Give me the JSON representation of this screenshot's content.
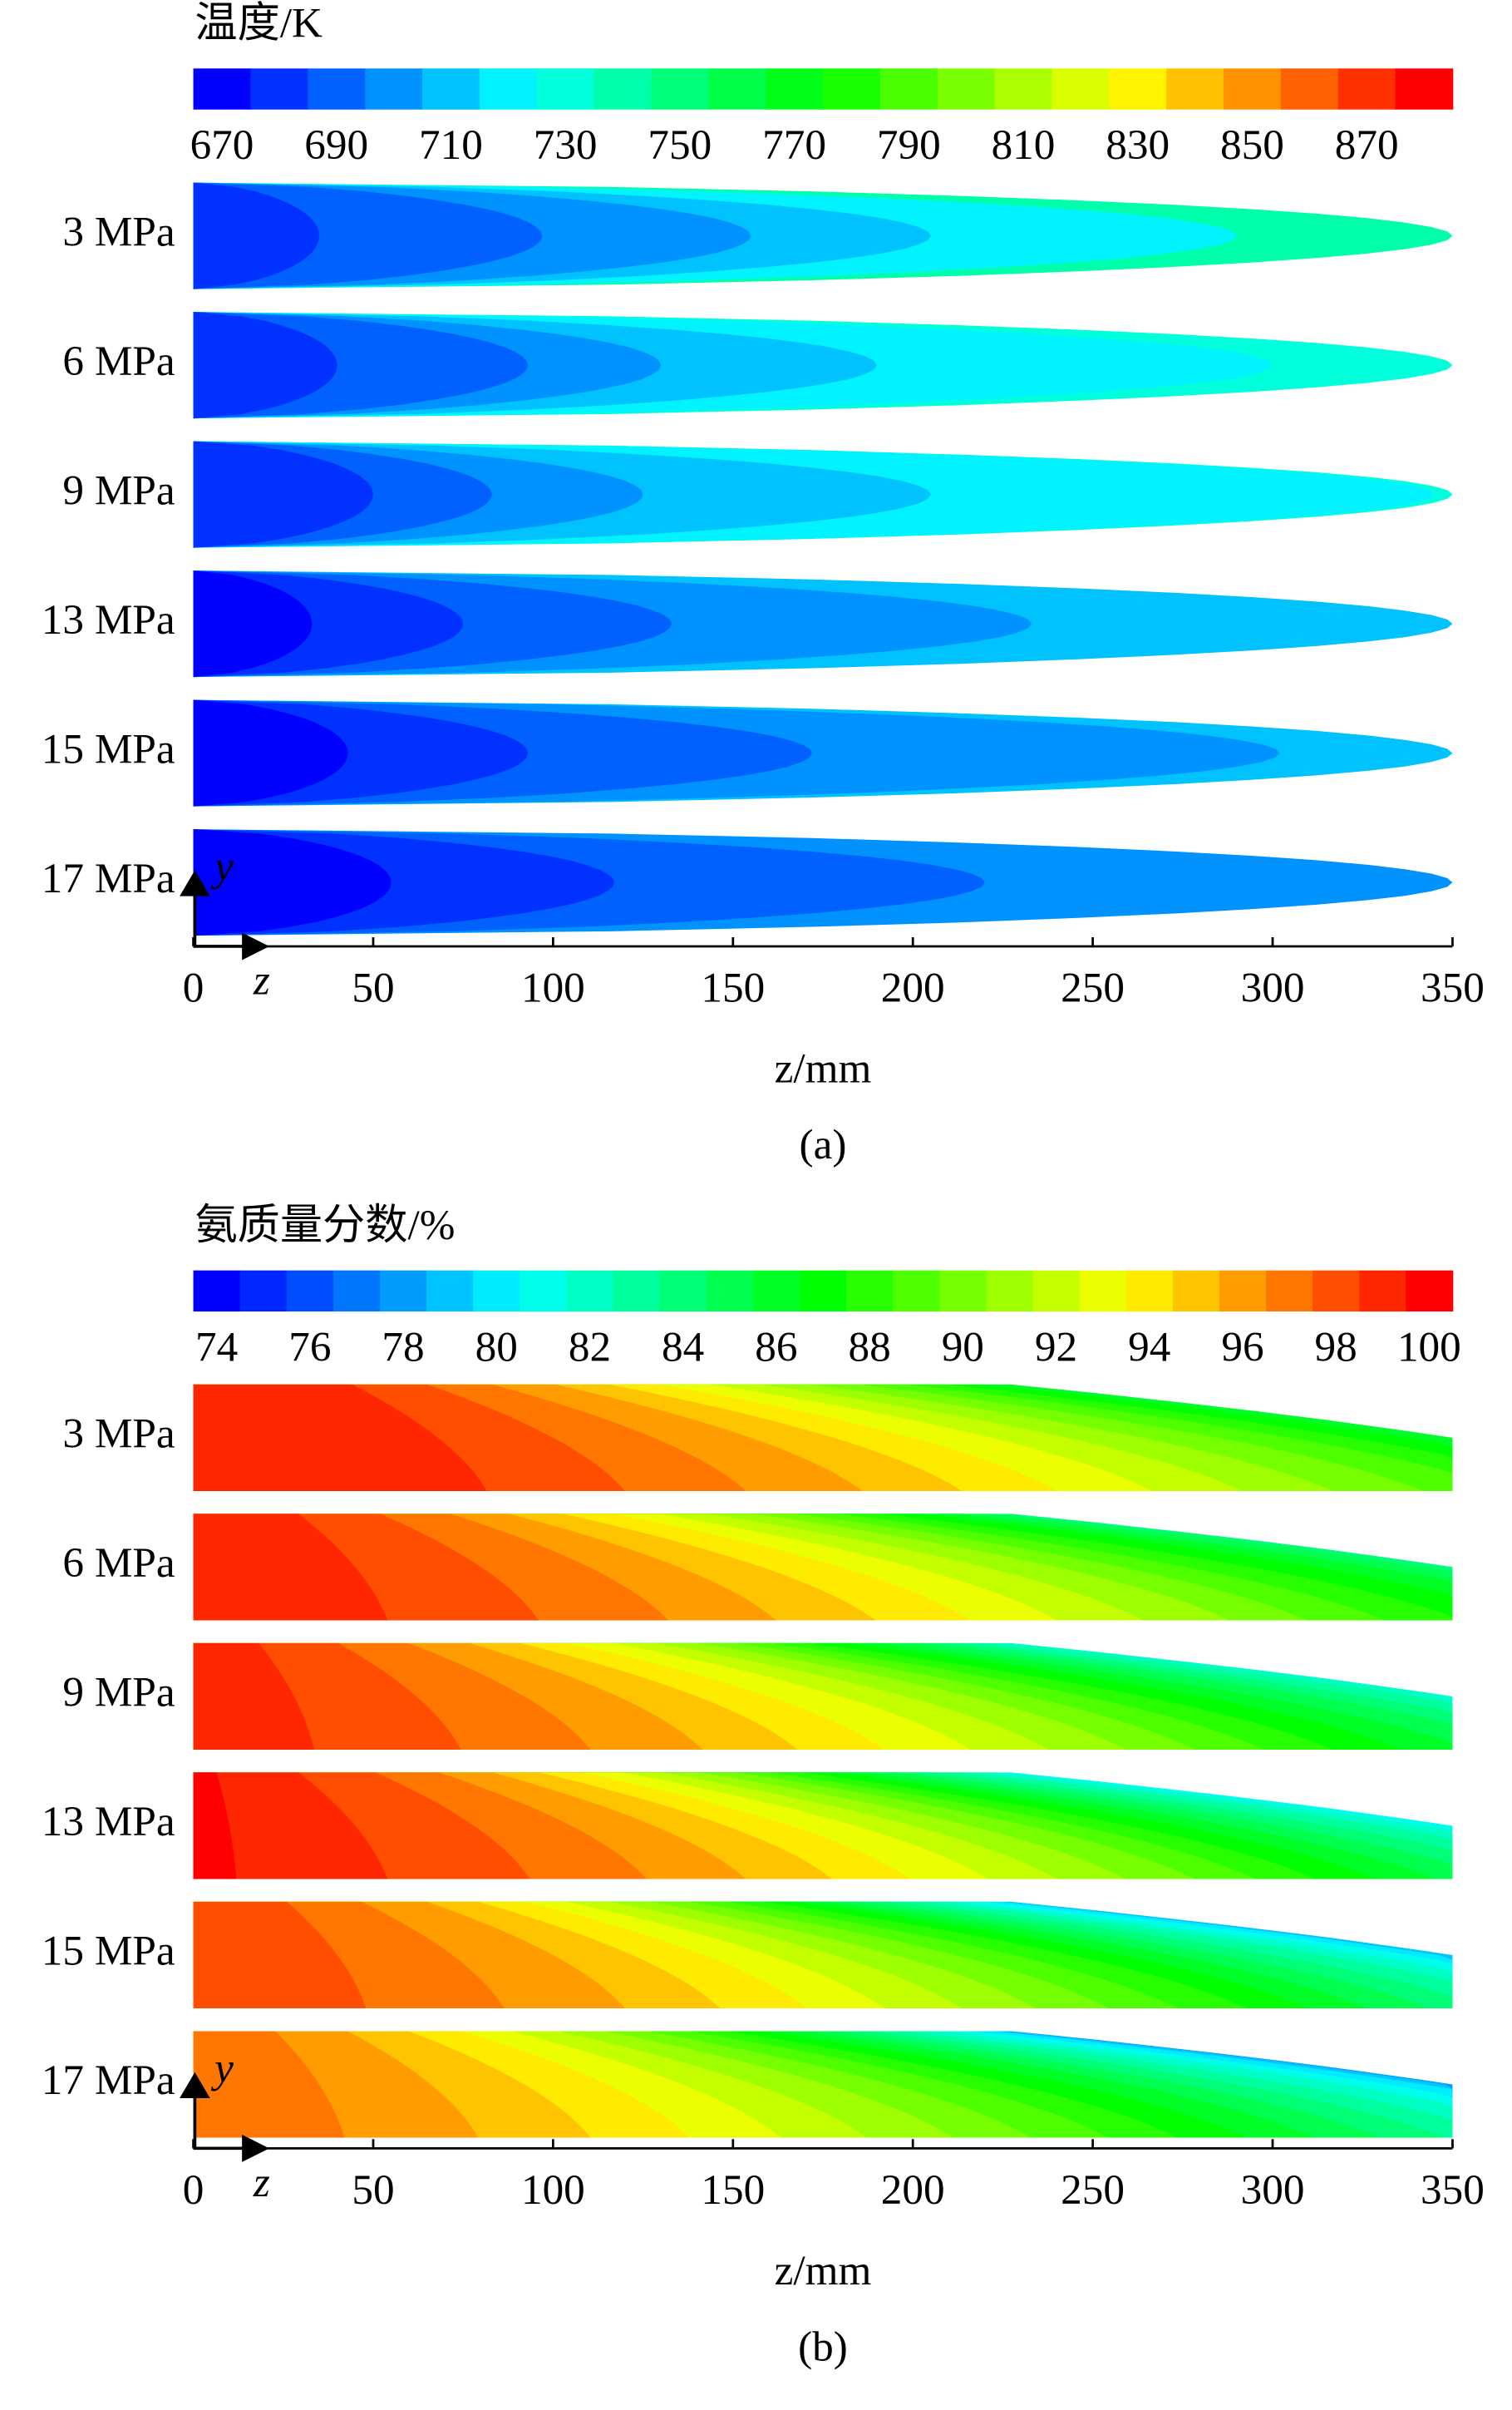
{
  "chart_data": [
    {
      "type": "contour",
      "title": "温度/K",
      "shape": "nose",
      "colorbar": {
        "clim": [
          665,
          885
        ],
        "step": 10,
        "colormap": "jet",
        "ticks": [
          670,
          690,
          710,
          730,
          750,
          770,
          790,
          810,
          830,
          850,
          870
        ]
      },
      "series": [
        {
          "name": "3 MPa",
          "x": [
            35,
            97,
            155,
            205,
            290,
            350
          ],
          "values": [
            680,
            690,
            700,
            710,
            720,
            740
          ]
        },
        {
          "name": "6 MPa",
          "x": [
            40,
            93,
            130,
            190,
            300,
            350
          ],
          "values": [
            680,
            690,
            700,
            710,
            720,
            730
          ]
        },
        {
          "name": "9 MPa",
          "x": [
            50,
            83,
            125,
            205,
            345,
            350
          ],
          "values": [
            680,
            690,
            700,
            710,
            720,
            730
          ]
        },
        {
          "name": "13 MPa",
          "x": [
            33,
            75,
            133,
            233,
            350
          ],
          "values": [
            670,
            680,
            690,
            700,
            710
          ]
        },
        {
          "name": "15 MPa",
          "x": [
            43,
            93,
            172,
            302,
            350
          ],
          "values": [
            670,
            680,
            690,
            700,
            710
          ]
        },
        {
          "name": "17 MPa",
          "x": [
            55,
            117,
            220,
            350
          ],
          "values": [
            670,
            680,
            690,
            700
          ]
        }
      ],
      "xlim": [
        0,
        350
      ],
      "xticks": [
        0,
        50,
        100,
        150,
        200,
        250,
        300,
        350
      ],
      "xlabel": "z/mm",
      "y_arrow_label": "y",
      "z_arrow_label": "z",
      "caption": "(a)"
    },
    {
      "type": "contour",
      "title": "氨质量分数/%",
      "shape": "slant",
      "colorbar": {
        "clim": [
          73.5,
          100.5
        ],
        "step": 1,
        "colormap": "jet",
        "ticks": [
          74,
          76,
          78,
          80,
          82,
          84,
          86,
          88,
          90,
          92,
          94,
          96,
          98,
          100
        ]
      },
      "series": [
        {
          "name": "3 MPa",
          "x": [
            68,
            100,
            128,
            155,
            178,
            200,
            222,
            243,
            264,
            285,
            305,
            322,
            338,
            350
          ],
          "values": [
            99,
            98,
            97,
            96,
            95,
            94,
            93,
            92,
            91,
            90,
            89,
            88,
            87,
            86
          ]
        },
        {
          "name": "6 MPa",
          "x": [
            45,
            80,
            110,
            135,
            158,
            180,
            200,
            220,
            240,
            258,
            276,
            294,
            312,
            328,
            342,
            350
          ],
          "values": [
            99,
            98,
            97,
            96,
            95,
            94,
            93,
            92,
            91,
            90,
            89,
            88,
            87,
            86,
            85,
            84
          ]
        },
        {
          "name": "9 MPa",
          "x": [
            28,
            62,
            92,
            118,
            140,
            160,
            180,
            198,
            216,
            232,
            248,
            264,
            280,
            296,
            312,
            326,
            340,
            350
          ],
          "values": [
            99,
            98,
            97,
            96,
            95,
            94,
            93,
            92,
            91,
            90,
            89,
            88,
            87,
            86,
            85,
            84,
            83,
            82
          ]
        },
        {
          "name": "13 MPa",
          "x": [
            10,
            45,
            78,
            105,
            128,
            148,
            166,
            184,
            200,
            216,
            232,
            246,
            260,
            274,
            288,
            302,
            316,
            330,
            342,
            350
          ],
          "values": [
            100,
            99,
            98,
            97,
            96,
            95,
            94,
            93,
            92,
            91,
            90,
            89,
            88,
            87,
            86,
            85,
            84,
            83,
            82,
            81
          ]
        },
        {
          "name": "15 MPa",
          "x": [
            40,
            72,
            100,
            122,
            142,
            160,
            178,
            195,
            212,
            228,
            244,
            258,
            272,
            286,
            300,
            314,
            326,
            338,
            346,
            350
          ],
          "values": [
            98,
            97,
            96,
            95,
            94,
            93,
            92,
            91,
            90,
            89,
            88,
            87,
            86,
            85,
            84,
            83,
            82,
            81,
            80,
            79
          ]
        },
        {
          "name": "17 MPa",
          "x": [
            35,
            66,
            92,
            115,
            136,
            156,
            176,
            194,
            212,
            228,
            244,
            260,
            275,
            290,
            305,
            320,
            332,
            342,
            348,
            350
          ],
          "values": [
            97,
            96,
            95,
            94,
            93,
            92,
            91,
            90,
            89,
            88,
            87,
            86,
            85,
            84,
            83,
            82,
            81,
            80,
            79,
            78
          ]
        }
      ],
      "xlim": [
        0,
        350
      ],
      "xticks": [
        0,
        50,
        100,
        150,
        200,
        250,
        300,
        350
      ],
      "xlabel": "z/mm",
      "y_arrow_label": "y",
      "z_arrow_label": "z",
      "caption": "(b)"
    }
  ]
}
